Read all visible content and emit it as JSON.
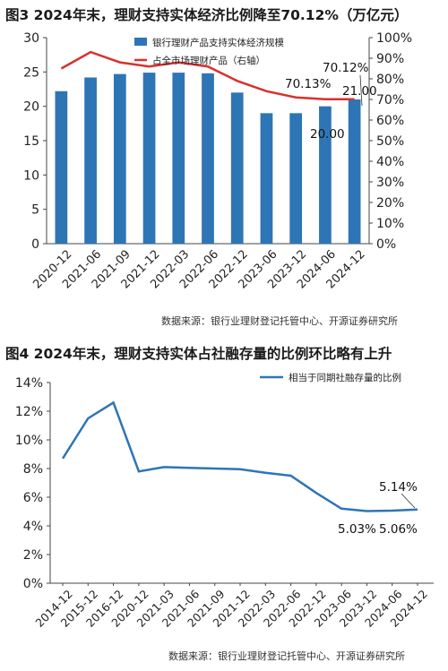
{
  "charts": {
    "chart1": {
      "title": "图3  2024年末，理财支持实体经济比例降至70.12%（万亿元）",
      "source": "数据来源：银行业理财登记托管中心、开源证券研究所"
    },
    "chart2": {
      "title": "图4  2024年末，理财支持实体占社融存量的比例环比略有上升",
      "source": "数据来源：银行业理财登记托管中心、开源证券研究所"
    }
  },
  "colors": {
    "bar": "#2e75b6",
    "line_red": "#d6322e",
    "line_blue": "#2e75b6"
  },
  "chart_data": [
    {
      "type": "bar",
      "title": "图3  2024年末，理财支持实体经济比例降至70.12%（万亿元）",
      "categories": [
        "2020-12",
        "2021-06",
        "2021-09",
        "2021-12",
        "2022-03",
        "2022-06",
        "2022-12",
        "2023-06",
        "2023-12",
        "2024-06",
        "2024-12"
      ],
      "series": [
        {
          "name": "银行理财产品支持实体经济规模",
          "type": "bar",
          "axis": "left",
          "values": [
            22.2,
            24.2,
            24.7,
            24.9,
            24.9,
            24.8,
            22.0,
            19.0,
            19.0,
            20.0,
            21.0
          ]
        },
        {
          "name": "占全市场理财产品（右轴）",
          "type": "line",
          "axis": "right",
          "values": [
            85,
            93,
            88,
            86,
            88,
            86,
            79,
            74,
            71,
            70.13,
            70.12
          ]
        }
      ],
      "ylim": [
        0,
        30
      ],
      "yticks": [
        "0",
        "5",
        "10",
        "15",
        "20",
        "25",
        "30"
      ],
      "y2lim": [
        0,
        100
      ],
      "y2ticks": [
        "0%",
        "10%",
        "20%",
        "30%",
        "40%",
        "50%",
        "60%",
        "70%",
        "80%",
        "90%",
        "100%"
      ],
      "annotations": [
        "70.12%",
        "70.13%",
        "21.00",
        "20.00"
      ],
      "legend": "top-center"
    },
    {
      "type": "line",
      "title": "图4  2024年末，理财支持实体占社融存量的比例环比略有上升",
      "categories": [
        "2014-12",
        "2015-12",
        "2016-12",
        "2020-12",
        "2021-03",
        "2021-06",
        "2021-09",
        "2021-12",
        "2022-03",
        "2022-06",
        "2022-12",
        "2023-06",
        "2023-12",
        "2024-06",
        "2024-12"
      ],
      "series": [
        {
          "name": "相当于同期社融存量的比例",
          "values": [
            8.7,
            11.5,
            12.6,
            7.8,
            8.1,
            8.05,
            8.0,
            7.95,
            7.7,
            7.5,
            6.3,
            5.2,
            5.03,
            5.06,
            5.14
          ]
        }
      ],
      "ylim": [
        0,
        14
      ],
      "yticks": [
        "0%",
        "2%",
        "4%",
        "6%",
        "8%",
        "10%",
        "12%",
        "14%"
      ],
      "annotations": [
        "5.14%",
        "5.03%",
        "5.06%"
      ],
      "legend": "top-right"
    }
  ]
}
